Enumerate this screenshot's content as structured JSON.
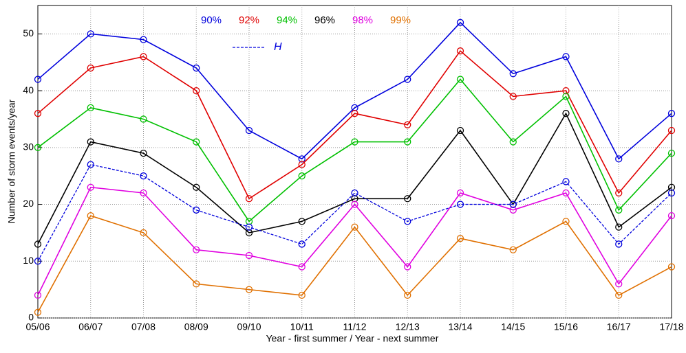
{
  "chart_data": {
    "type": "line",
    "x_label": "Year - first summer / Year - next summer",
    "y_label": "Number of storm events/year",
    "categories": [
      "05/06",
      "06/07",
      "07/08",
      "08/09",
      "09/10",
      "10/11",
      "11/12",
      "12/13",
      "13/14",
      "14/15",
      "15/16",
      "16/17",
      "17/18"
    ],
    "series": [
      {
        "name": "90%",
        "color": "#0000dd",
        "values": [
          42,
          50,
          49,
          44,
          33,
          28,
          37,
          42,
          52,
          43,
          46,
          28,
          36
        ]
      },
      {
        "name": "92%",
        "color": "#e00000",
        "values": [
          36,
          44,
          46,
          40,
          21,
          27,
          36,
          34,
          47,
          39,
          40,
          22,
          33
        ]
      },
      {
        "name": "94%",
        "color": "#00c000",
        "values": [
          30,
          37,
          35,
          31,
          17,
          25,
          31,
          31,
          42,
          31,
          39,
          19,
          29
        ]
      },
      {
        "name": "96%",
        "color": "#000000",
        "values": [
          13,
          31,
          29,
          23,
          15,
          17,
          21,
          21,
          33,
          20,
          36,
          16,
          23
        ]
      },
      {
        "name": "98%",
        "color": "#e000e0",
        "values": [
          4,
          23,
          22,
          12,
          11,
          9,
          20,
          9,
          22,
          19,
          22,
          6,
          18
        ]
      },
      {
        "name": "99%",
        "color": "#e07000",
        "values": [
          1,
          18,
          15,
          6,
          5,
          4,
          16,
          4,
          14,
          12,
          17,
          4,
          9
        ]
      },
      {
        "name": "H",
        "color": "#0000dd",
        "dashed": true,
        "values": [
          10,
          27,
          25,
          19,
          16,
          13,
          22,
          17,
          20,
          20,
          24,
          13,
          22
        ]
      }
    ],
    "ylim": [
      0,
      55
    ],
    "yticks": [
      0,
      10,
      20,
      30,
      40,
      50
    ],
    "grid": true
  }
}
